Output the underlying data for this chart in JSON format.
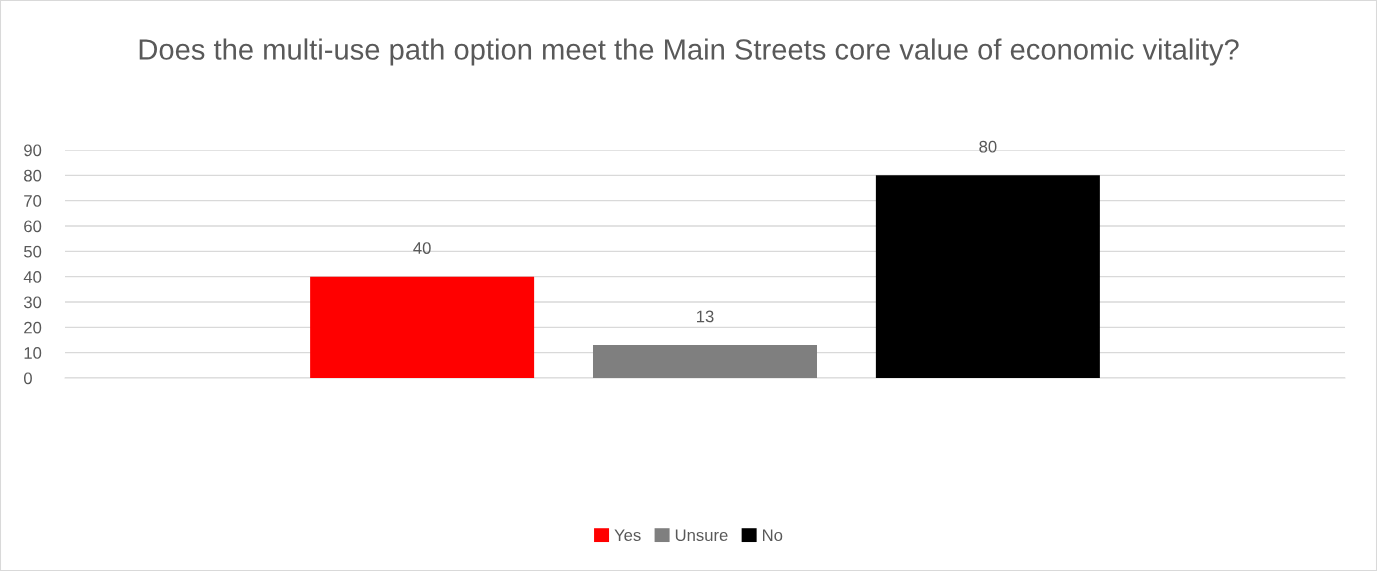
{
  "chart_data": {
    "type": "bar",
    "title": "Does the multi-use path option meet the Main Streets core value of economic vitality?",
    "categories": [
      null
    ],
    "series": [
      {
        "name": "Yes",
        "color": "#ff0000",
        "values": [
          40
        ]
      },
      {
        "name": "Unsure",
        "color": "#7f7f7f",
        "values": [
          13
        ]
      },
      {
        "name": "No",
        "color": "#000000",
        "values": [
          80
        ]
      }
    ],
    "ylim": [
      0,
      90
    ],
    "yticks": [
      0,
      10,
      20,
      30,
      40,
      50,
      60,
      70,
      80,
      90
    ],
    "grid": "y",
    "legend": "bottom",
    "data_labels": true
  }
}
